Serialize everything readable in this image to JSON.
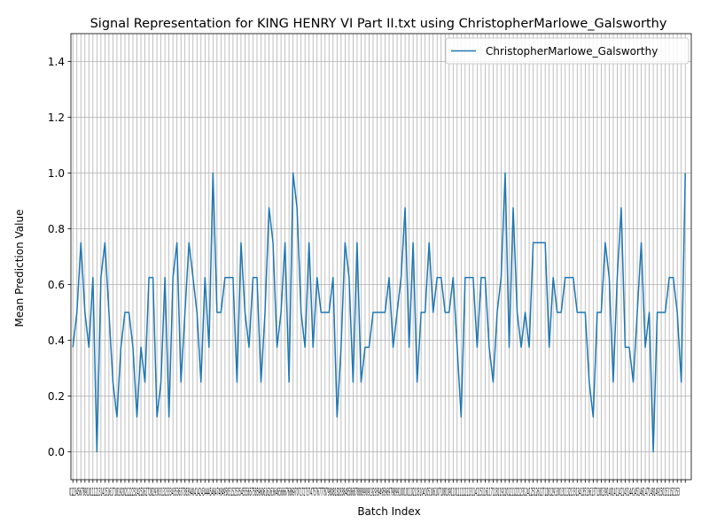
{
  "chart_data": {
    "type": "line",
    "title": "Signal Representation for KING HENRY VI Part II.txt using ChristopherMarlowe_Galsworthy",
    "xlabel": "Batch Index",
    "ylabel": "Mean Prediction Value",
    "ylim": [
      -0.1,
      1.5
    ],
    "xlim": [
      -0.5,
      154.5
    ],
    "y_ticks": [
      0.0,
      0.2,
      0.4,
      0.6,
      0.8,
      1.0,
      1.2,
      1.4
    ],
    "y_tick_labels": [
      "0.0",
      "0.2",
      "0.4",
      "0.6",
      "0.8",
      "1.0",
      "1.2",
      "1.4"
    ],
    "x_ticks_every_integer": true,
    "x_tick_label_text": "0123456789101112131415161718192021222324252627282930313233343536373839404142434445464748495051525354555657585960616263646566676869707172737475767778798081828384858687888990919293949596979899100101102103104105106107108109110111112113114115116117118119120121122123124125126127128129130131132133134135136137138139140141142143144145146147148149150151152153",
    "grid": true,
    "legend": "top-right",
    "series": [
      {
        "name": "ChristopherMarlowe_Galsworthy",
        "color": "#1f77b4",
        "x": [
          0,
          1,
          2,
          3,
          4,
          5,
          6,
          7,
          8,
          9,
          10,
          11,
          12,
          13,
          14,
          15,
          16,
          17,
          18,
          19,
          20,
          21,
          22,
          23,
          24,
          25,
          26,
          27,
          28,
          29,
          30,
          31,
          32,
          33,
          34,
          35,
          36,
          37,
          38,
          39,
          40,
          41,
          42,
          43,
          44,
          45,
          46,
          47,
          48,
          49,
          50,
          51,
          52,
          53,
          54,
          55,
          56,
          57,
          58,
          59,
          60,
          61,
          62,
          63,
          64,
          65,
          66,
          67,
          68,
          69,
          70,
          71,
          72,
          73,
          74,
          75,
          76,
          77,
          78,
          79,
          80,
          81,
          82,
          83,
          84,
          85,
          86,
          87,
          88,
          89,
          90,
          91,
          92,
          93,
          94,
          95,
          96,
          97,
          98,
          99,
          100,
          101,
          102,
          103,
          104,
          105,
          106,
          107,
          108,
          109,
          110,
          111,
          112,
          113,
          114,
          115,
          116,
          117,
          118,
          119,
          120,
          121,
          122,
          123,
          124,
          125,
          126,
          127,
          128,
          129,
          130,
          131,
          132,
          133,
          134,
          135,
          136,
          137,
          138,
          139,
          140,
          141,
          142,
          143,
          144,
          145,
          146,
          147,
          148,
          149,
          150,
          151,
          152,
          153
        ],
        "values": [
          0.375,
          0.5,
          0.75,
          0.5,
          0.375,
          0.625,
          0.0,
          0.625,
          0.75,
          0.5,
          0.25,
          0.125,
          0.375,
          0.5,
          0.5,
          0.375,
          0.125,
          0.375,
          0.25,
          0.625,
          0.625,
          0.125,
          0.25,
          0.625,
          0.125,
          0.625,
          0.75,
          0.25,
          0.5,
          0.75,
          0.625,
          0.5,
          0.25,
          0.625,
          0.375,
          1.0,
          0.5,
          0.5,
          0.625,
          0.625,
          0.625,
          0.25,
          0.75,
          0.5,
          0.375,
          0.625,
          0.625,
          0.25,
          0.5,
          0.875,
          0.75,
          0.375,
          0.5,
          0.75,
          0.25,
          1.0,
          0.875,
          0.5,
          0.375,
          0.75,
          0.375,
          0.625,
          0.5,
          0.5,
          0.5,
          0.625,
          0.125,
          0.375,
          0.75,
          0.625,
          0.25,
          0.75,
          0.25,
          0.375,
          0.375,
          0.5,
          0.5,
          0.5,
          0.5,
          0.625,
          0.375,
          0.5,
          0.625,
          0.875,
          0.375,
          0.75,
          0.25,
          0.5,
          0.5,
          0.75,
          0.5,
          0.625,
          0.625,
          0.5,
          0.5,
          0.625,
          0.375,
          0.125,
          0.625,
          0.625,
          0.625,
          0.375,
          0.625,
          0.625,
          0.375,
          0.25,
          0.5,
          0.625,
          1.0,
          0.375,
          0.875,
          0.5,
          0.375,
          0.5,
          0.375,
          0.75,
          0.75,
          0.75,
          0.75,
          0.375,
          0.625,
          0.5,
          0.5,
          0.625,
          0.625,
          0.625,
          0.5,
          0.5,
          0.5,
          0.25,
          0.125,
          0.5,
          0.5,
          0.75,
          0.625,
          0.25,
          0.625,
          0.875,
          0.375,
          0.375,
          0.25,
          0.5,
          0.75,
          0.375,
          0.5,
          0.0,
          0.5,
          0.5,
          0.5,
          0.625,
          0.625,
          0.5,
          0.25,
          1.0
        ]
      }
    ]
  }
}
